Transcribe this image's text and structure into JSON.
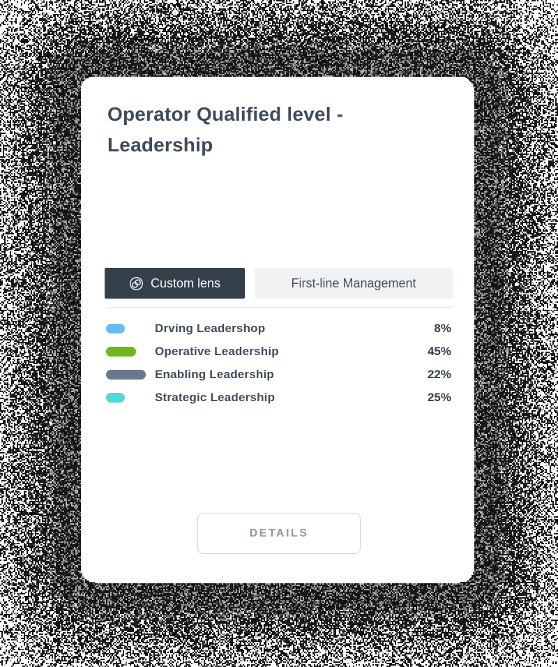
{
  "card": {
    "title": "Operator Qualified level - Leadership",
    "tabs": [
      {
        "label": "Custom lens",
        "icon": "lens-icon",
        "active": true
      },
      {
        "label": "First-line Management",
        "active": false
      }
    ],
    "legend": [
      {
        "label": "Drving Leadershop",
        "value": "8%",
        "color": "#6cbaf2",
        "swatch_width": 27
      },
      {
        "label": "Operative Leadership",
        "value": "45%",
        "color": "#70b71e",
        "swatch_width": 43
      },
      {
        "label": "Enabling Leadership",
        "value": "22%",
        "color": "#68788e",
        "swatch_width": 57
      },
      {
        "label": "Strategic Leadership",
        "value": "25%",
        "color": "#55d5dc",
        "swatch_width": 27
      }
    ],
    "details_button": {
      "label": "DETAILS"
    }
  },
  "colors": {
    "tab_active_bg": "#33404b",
    "tab_active_text": "#f6f7f8",
    "tab_inactive_bg": "#f1f2f4",
    "tab_inactive_text": "#47525d",
    "title_text": "#3e4c59"
  }
}
